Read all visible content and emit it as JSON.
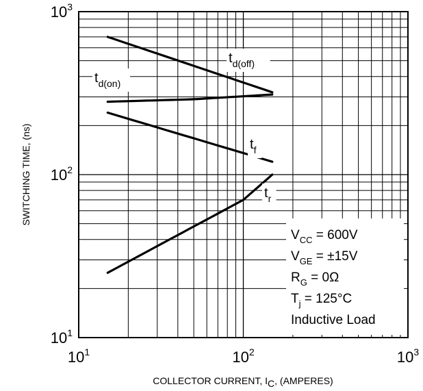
{
  "chart_data": {
    "type": "line",
    "xscale": "log",
    "yscale": "log",
    "xlim": [
      10,
      1000
    ],
    "ylim": [
      10,
      1000
    ],
    "grid": true,
    "xlabel": {
      "main": "COLLECTOR CURRENT, I",
      "sub": "C",
      "tail": ", (AMPERES)"
    },
    "ylabel": "SWITCHING TIME, (ns)",
    "x_ticks": [
      {
        "base": "10",
        "exp": "1"
      },
      {
        "base": "10",
        "exp": "2"
      },
      {
        "base": "10",
        "exp": "3"
      }
    ],
    "y_ticks": [
      {
        "base": "10",
        "exp": "1"
      },
      {
        "base": "10",
        "exp": "2"
      },
      {
        "base": "10",
        "exp": "3"
      }
    ],
    "series": [
      {
        "main": "t",
        "sub": "d(off)",
        "x": [
          15,
          150
        ],
        "y": [
          700,
          320
        ]
      },
      {
        "main": "t",
        "sub": "d(on)",
        "x": [
          15,
          50,
          150
        ],
        "y": [
          280,
          290,
          310
        ]
      },
      {
        "main": "t",
        "sub": "f",
        "x": [
          15,
          150
        ],
        "y": [
          240,
          120
        ]
      },
      {
        "main": "t",
        "sub": "r",
        "x": [
          15,
          100,
          150
        ],
        "y": [
          25,
          70,
          100
        ]
      }
    ],
    "conditions": [
      {
        "main": "V",
        "sub": "CC",
        "rest": " = 600V"
      },
      {
        "main": "V",
        "sub": "GE",
        "rest": " = ±15V"
      },
      {
        "main": "R",
        "sub": "G",
        "rest": " = 0Ω"
      },
      {
        "main": "T",
        "sub": "j",
        "rest": " = 125°C"
      },
      {
        "main": "Inductive Load",
        "sub": "",
        "rest": ""
      }
    ]
  }
}
